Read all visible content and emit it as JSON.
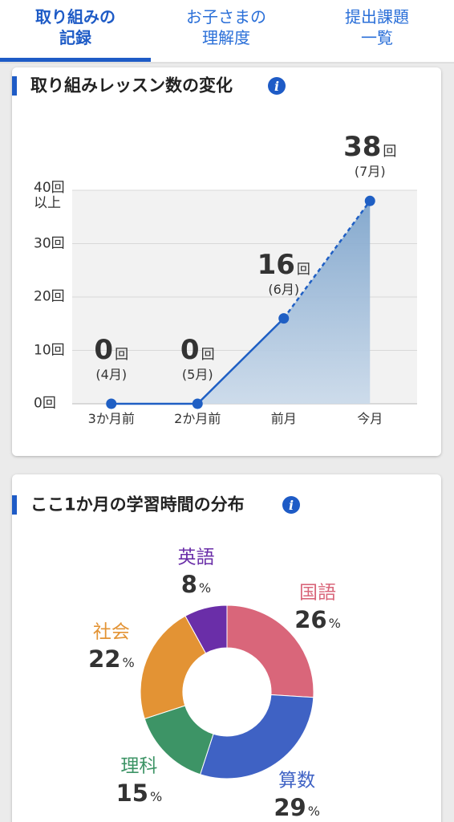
{
  "tabs": [
    {
      "lines": [
        "取り組みの",
        "記録"
      ],
      "active": true
    },
    {
      "lines": [
        "お子さまの",
        "理解度"
      ],
      "active": false
    },
    {
      "lines": [
        "提出課題",
        "一覧"
      ],
      "active": false
    }
  ],
  "chart_data": [
    {
      "type": "line",
      "title": "取り組みレッスン数の変化",
      "categories": [
        "3か月前",
        "2か月前",
        "前月",
        "今月"
      ],
      "values": [
        0,
        0,
        16,
        38
      ],
      "value_unit": "回",
      "months": [
        "(4月)",
        "(5月)",
        "(6月)",
        "(7月)"
      ],
      "color": "#1f5fc4",
      "ylim": [
        0,
        40
      ],
      "yticks": [
        {
          "value": 0,
          "label": "0回"
        },
        {
          "value": 10,
          "label": "10回"
        },
        {
          "value": 20,
          "label": "20回"
        },
        {
          "value": 30,
          "label": "30回"
        },
        {
          "value": 40,
          "label": "40回\n以上"
        }
      ],
      "grid": true
    },
    {
      "type": "pie",
      "title": "ここ1か月の学習時間の分布",
      "categories": [
        "国語",
        "算数",
        "理科",
        "社会",
        "英語"
      ],
      "values": [
        26,
        29,
        15,
        22,
        8
      ],
      "value_unit": "%",
      "colors": [
        "#d9667a",
        "#3f62c4",
        "#3d9466",
        "#e39334",
        "#6a2ea8"
      ]
    }
  ]
}
